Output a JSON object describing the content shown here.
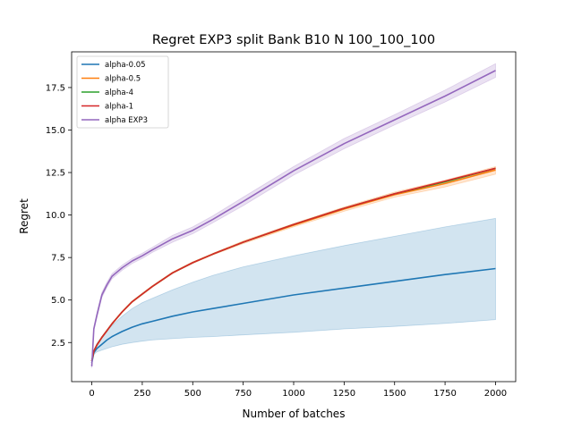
{
  "chart_data": {
    "type": "line",
    "title": "Regret EXP3 split Bank B10 N 100_100_100",
    "xlabel": "Number of batches",
    "ylabel": "Regret",
    "xlim": [
      -100,
      2100
    ],
    "ylim": [
      0.2,
      19.6
    ],
    "x_ticks": [
      0,
      250,
      500,
      750,
      1000,
      1250,
      1500,
      1750,
      2000
    ],
    "x_tick_labels": [
      "0",
      "250",
      "500",
      "750",
      "1000",
      "1250",
      "1500",
      "1750",
      "2000"
    ],
    "y_ticks": [
      2.5,
      5.0,
      7.5,
      10.0,
      12.5,
      15.0,
      17.5
    ],
    "y_tick_labels": [
      "2.5",
      "5.0",
      "7.5",
      "10.0",
      "12.5",
      "15.0",
      "17.5"
    ],
    "grid": false,
    "legend_position": "upper-left",
    "x": [
      0,
      10,
      25,
      50,
      75,
      100,
      150,
      200,
      250,
      300,
      400,
      500,
      600,
      750,
      1000,
      1250,
      1500,
      1750,
      2000
    ],
    "series": [
      {
        "name": "alpha-0.05",
        "color": "#1f77b4",
        "values": [
          1.3,
          1.9,
          2.15,
          2.4,
          2.65,
          2.85,
          3.15,
          3.4,
          3.6,
          3.75,
          4.05,
          4.3,
          4.5,
          4.8,
          5.3,
          5.7,
          6.1,
          6.5,
          6.85
        ],
        "band_lower": [
          1.2,
          1.8,
          1.95,
          2.05,
          2.15,
          2.25,
          2.4,
          2.5,
          2.58,
          2.65,
          2.73,
          2.8,
          2.85,
          2.95,
          3.1,
          3.3,
          3.45,
          3.62,
          3.85
        ],
        "band_upper": [
          1.4,
          2.05,
          2.45,
          2.85,
          3.2,
          3.5,
          4.05,
          4.5,
          4.85,
          5.1,
          5.6,
          6.05,
          6.45,
          6.95,
          7.6,
          8.2,
          8.75,
          9.3,
          9.8
        ]
      },
      {
        "name": "alpha-0.5",
        "color": "#ff7f0e",
        "values": [
          1.4,
          2.0,
          2.35,
          2.8,
          3.2,
          3.6,
          4.3,
          4.9,
          5.35,
          5.8,
          6.6,
          7.2,
          7.7,
          8.4,
          9.4,
          10.35,
          11.2,
          11.85,
          12.65
        ],
        "band_lower": [
          1.35,
          1.95,
          2.3,
          2.75,
          3.15,
          3.55,
          4.25,
          4.85,
          5.3,
          5.75,
          6.55,
          7.15,
          7.65,
          8.32,
          9.3,
          10.22,
          11.05,
          11.65,
          12.4
        ],
        "band_upper": [
          1.45,
          2.05,
          2.4,
          2.85,
          3.25,
          3.65,
          4.35,
          4.95,
          5.4,
          5.85,
          6.65,
          7.25,
          7.75,
          8.48,
          9.5,
          10.48,
          11.35,
          12.05,
          12.85
        ]
      },
      {
        "name": "alpha-4",
        "color": "#2ca02c",
        "values": [
          1.4,
          2.0,
          2.35,
          2.8,
          3.2,
          3.6,
          4.3,
          4.9,
          5.35,
          5.8,
          6.6,
          7.2,
          7.7,
          8.4,
          9.45,
          10.4,
          11.25,
          11.95,
          12.75
        ]
      },
      {
        "name": "alpha-1",
        "color": "#d62728",
        "values": [
          1.4,
          2.0,
          2.35,
          2.8,
          3.2,
          3.6,
          4.3,
          4.9,
          5.35,
          5.8,
          6.6,
          7.2,
          7.7,
          8.4,
          9.45,
          10.4,
          11.25,
          12.0,
          12.75
        ]
      },
      {
        "name": "alpha EXP3",
        "color": "#9467bd",
        "values": [
          1.1,
          3.3,
          4.1,
          5.3,
          5.9,
          6.4,
          6.9,
          7.3,
          7.6,
          7.95,
          8.6,
          9.1,
          9.75,
          10.8,
          12.6,
          14.2,
          15.6,
          17.0,
          18.5
        ],
        "band_lower": [
          1.0,
          3.2,
          3.95,
          5.15,
          5.75,
          6.25,
          6.75,
          7.15,
          7.45,
          7.8,
          8.4,
          8.9,
          9.55,
          10.55,
          12.35,
          13.9,
          15.3,
          16.65,
          18.1
        ],
        "band_upper": [
          1.2,
          3.4,
          4.25,
          5.45,
          6.05,
          6.55,
          7.05,
          7.45,
          7.75,
          8.1,
          8.8,
          9.3,
          9.95,
          11.05,
          12.85,
          14.5,
          15.9,
          17.35,
          18.9
        ]
      }
    ]
  }
}
